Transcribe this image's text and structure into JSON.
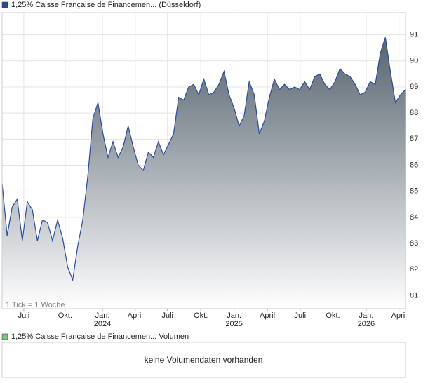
{
  "chart_data": {
    "type": "area",
    "series": [
      {
        "name": "1,25% Caisse Française de Financemen... (Düsseldorf)",
        "color": "#2a4c9c",
        "values": [
          85.3,
          83.3,
          84.4,
          84.7,
          83.1,
          84.6,
          84.3,
          83.1,
          83.9,
          83.8,
          83.1,
          83.9,
          83.2,
          82.1,
          81.6,
          82.9,
          83.9,
          85.6,
          87.8,
          88.4,
          87.2,
          86.3,
          86.9,
          86.3,
          86.7,
          87.5,
          86.7,
          86.0,
          85.8,
          86.5,
          86.3,
          86.9,
          86.4,
          86.8,
          87.2,
          88.6,
          88.5,
          89.0,
          89.1,
          88.7,
          89.3,
          88.7,
          88.8,
          89.1,
          89.6,
          88.7,
          88.2,
          87.5,
          87.9,
          89.2,
          88.7,
          87.2,
          87.7,
          88.6,
          89.3,
          88.9,
          89.1,
          88.9,
          89.0,
          88.9,
          89.2,
          88.9,
          89.4,
          89.5,
          89.1,
          88.9,
          89.2,
          89.7,
          89.5,
          89.4,
          89.1,
          88.7,
          88.8,
          89.2,
          89.1,
          90.3,
          90.9,
          89.6,
          88.4,
          88.7,
          88.9
        ]
      }
    ],
    "note": "1 Tick = 1 Woche",
    "ylim": [
      80.5,
      91.85
    ],
    "yticks": [
      81,
      82,
      83,
      84,
      85,
      86,
      87,
      88,
      89,
      90,
      91
    ],
    "xlim": [
      0,
      80
    ],
    "xticks": [
      {
        "value": 4.3,
        "label": "Juli"
      },
      {
        "value": 12.5,
        "label": "Okt."
      },
      {
        "value": 19.9,
        "label": "Jan."
      },
      {
        "value": 26.4,
        "label": "April"
      },
      {
        "value": 32.8,
        "label": "Juli"
      },
      {
        "value": 39.4,
        "label": "Okt."
      },
      {
        "value": 46.0,
        "label": "Jan."
      },
      {
        "value": 52.6,
        "label": "April"
      },
      {
        "value": 59.1,
        "label": "Juli"
      },
      {
        "value": 65.6,
        "label": "Okt."
      },
      {
        "value": 72.2,
        "label": "Jan."
      },
      {
        "value": 78.7,
        "label": "April"
      }
    ],
    "year_labels": [
      {
        "value": 19.9,
        "label": "2024"
      },
      {
        "value": 46.0,
        "label": "2025"
      },
      {
        "value": 72.2,
        "label": "2026"
      }
    ],
    "grid": true
  },
  "volume_panel": {
    "legend": "1,25% Caisse Française de Financemen... Volumen",
    "message": "keine Volumendaten vorhanden"
  }
}
